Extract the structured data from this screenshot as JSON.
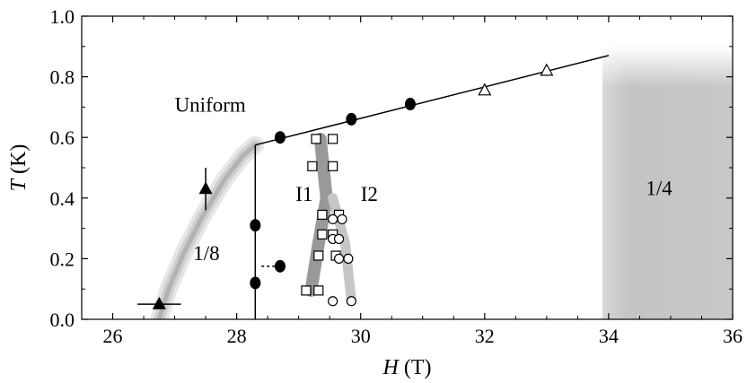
{
  "chart_data": {
    "type": "scatter",
    "xlabel": "H",
    "xunit": "(T)",
    "ylabel": "T",
    "yunit": "(K)",
    "xlim": [
      25.5,
      36
    ],
    "ylim": [
      0,
      1.0
    ],
    "xticks": [
      26,
      28,
      30,
      32,
      34,
      36
    ],
    "yticks": [
      0.0,
      0.2,
      0.4,
      0.6,
      0.8,
      1.0
    ],
    "xtick_labels": [
      "26",
      "28",
      "30",
      "32",
      "34",
      "36"
    ],
    "ytick_labels": [
      "0.0",
      "0.2",
      "0.4",
      "0.6",
      "0.8",
      "1.0"
    ],
    "grid": false,
    "series": [
      {
        "marker": "filled-circle",
        "points": [
          [
            28.3,
            0.31
          ],
          [
            28.3,
            0.12
          ],
          [
            28.7,
            0.175
          ],
          [
            28.7,
            0.6
          ],
          [
            29.85,
            0.66
          ],
          [
            30.8,
            0.71
          ]
        ]
      },
      {
        "marker": "open-triangle",
        "points": [
          [
            32.0,
            0.755
          ],
          [
            33.0,
            0.82
          ]
        ]
      },
      {
        "marker": "filled-triangle",
        "points": [
          [
            27.5,
            0.43
          ],
          [
            26.75,
            0.05
          ]
        ],
        "xerr": [
          0,
          0.35
        ],
        "yerr": [
          0.07,
          0
        ]
      },
      {
        "marker": "open-square",
        "points": [
          [
            29.28,
            0.595
          ],
          [
            29.55,
            0.595
          ],
          [
            29.22,
            0.505
          ],
          [
            29.55,
            0.505
          ],
          [
            29.38,
            0.345
          ],
          [
            29.65,
            0.345
          ],
          [
            29.38,
            0.28
          ],
          [
            29.55,
            0.28
          ],
          [
            29.32,
            0.21
          ],
          [
            29.6,
            0.21
          ],
          [
            29.12,
            0.095
          ],
          [
            29.32,
            0.095
          ]
        ]
      },
      {
        "marker": "open-circle",
        "points": [
          [
            29.55,
            0.33
          ],
          [
            29.7,
            0.33
          ],
          [
            29.55,
            0.265
          ],
          [
            29.65,
            0.265
          ],
          [
            29.65,
            0.2
          ],
          [
            29.8,
            0.2
          ],
          [
            29.55,
            0.06
          ],
          [
            29.85,
            0.06
          ]
        ]
      }
    ],
    "lines": [
      {
        "kind": "solid",
        "points": [
          [
            28.3,
            0.575
          ],
          [
            34.0,
            0.87
          ]
        ]
      },
      {
        "kind": "solid",
        "points": [
          [
            28.3,
            0.575
          ],
          [
            28.3,
            0.0
          ]
        ]
      },
      {
        "kind": "dashed",
        "points": [
          [
            28.4,
            0.175
          ],
          [
            28.7,
            0.175
          ]
        ]
      }
    ],
    "bands": [
      {
        "kind": "phase-boundary-curve",
        "points": [
          [
            26.75,
            0.0
          ],
          [
            26.9,
            0.1
          ],
          [
            27.15,
            0.22
          ],
          [
            27.45,
            0.34
          ],
          [
            27.8,
            0.46
          ],
          [
            28.1,
            0.54
          ],
          [
            28.3,
            0.575
          ]
        ]
      },
      {
        "kind": "boundary-I1",
        "points": [
          [
            29.2,
            0.095
          ],
          [
            29.32,
            0.25
          ],
          [
            29.45,
            0.4
          ],
          [
            29.35,
            0.595
          ]
        ]
      },
      {
        "kind": "boundary-I2",
        "points": [
          [
            29.85,
            0.06
          ],
          [
            29.75,
            0.25
          ],
          [
            29.55,
            0.4
          ]
        ]
      },
      {
        "kind": "phase-region-1/4",
        "x_from": 33.9,
        "x_to": 36.0,
        "y_from": 0.0,
        "y_to": 0.9
      }
    ],
    "annotations": [
      {
        "text": "Uniform",
        "x": 27.0,
        "y": 0.685
      },
      {
        "text": "I1",
        "x": 28.95,
        "y": 0.39
      },
      {
        "text": "I2",
        "x": 30.0,
        "y": 0.39
      },
      {
        "text": "1/8",
        "x": 27.3,
        "y": 0.195
      },
      {
        "text": "1/4",
        "x": 34.6,
        "y": 0.41
      }
    ]
  }
}
